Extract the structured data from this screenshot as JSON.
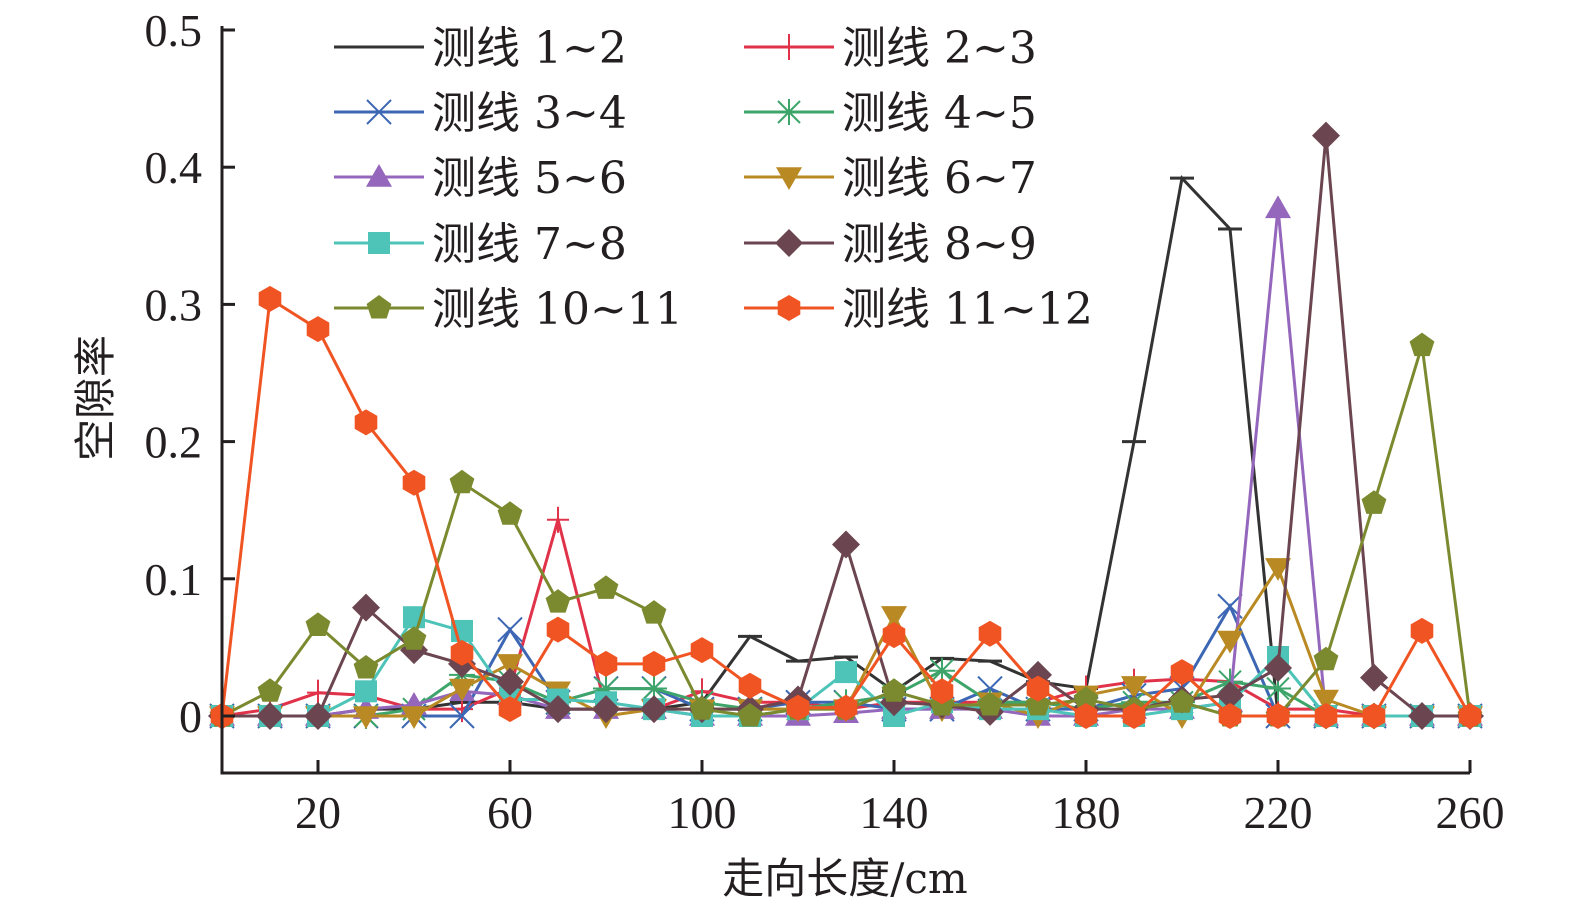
{
  "chart_data": {
    "type": "line",
    "title": "",
    "xlabel": "走向长度/cm",
    "ylabel": "空隙率",
    "xlim": [
      0,
      260
    ],
    "ylim": [
      -0.042,
      0.5
    ],
    "xticks": [
      20,
      60,
      100,
      140,
      180,
      220,
      260
    ],
    "xtick_labels": [
      "20",
      "60",
      "100",
      "140",
      "180",
      "220",
      "260"
    ],
    "yticks": [
      0,
      0.1,
      0.2,
      0.3,
      0.4,
      0.5
    ],
    "ytick_labels": [
      "0",
      "0.1",
      "0.2",
      "0.3",
      "0.4",
      "0.5"
    ],
    "grid": false,
    "legend_position": "top",
    "x": [
      0,
      10,
      20,
      30,
      40,
      50,
      60,
      70,
      80,
      90,
      100,
      110,
      120,
      130,
      140,
      150,
      160,
      170,
      180,
      190,
      200,
      210,
      220,
      230,
      240,
      250,
      260
    ],
    "series": [
      {
        "name": "测线 1~2",
        "color": "#333333",
        "marker": "hline",
        "values": [
          0,
          0,
          0,
          0.005,
          0.005,
          0.01,
          0.01,
          0.005,
          0.005,
          0.005,
          0.01,
          0.058,
          0.04,
          0.043,
          0.018,
          0.042,
          0.04,
          0.025,
          0.02,
          0.2,
          0.392,
          0.355,
          0,
          0,
          0,
          0,
          0
        ]
      },
      {
        "name": "测线 2~3",
        "color": "#e0334a",
        "marker": "plus",
        "values": [
          0,
          0.005,
          0.017,
          0.015,
          0.005,
          0.005,
          0.02,
          0.143,
          0.005,
          0.005,
          0.018,
          0.01,
          0.01,
          0.005,
          0.01,
          0.01,
          0.01,
          0.01,
          0.02,
          0.025,
          0.027,
          0.025,
          0.005,
          0.005,
          0,
          0,
          0
        ]
      },
      {
        "name": "测线 3~4",
        "color": "#3d67b4",
        "marker": "x",
        "values": [
          0,
          0,
          0,
          0,
          0,
          0,
          0.063,
          0.01,
          0.02,
          0.02,
          0.005,
          0.005,
          0.01,
          0.01,
          0.005,
          0.005,
          0.02,
          0.005,
          0.005,
          0.015,
          0.02,
          0.08,
          0,
          0,
          0,
          0,
          0
        ]
      },
      {
        "name": "测线 4~5",
        "color": "#3ea56a",
        "marker": "asterisk",
        "values": [
          0,
          0,
          0,
          0,
          0.005,
          0.03,
          0.025,
          0.01,
          0.02,
          0.02,
          0.01,
          0.005,
          0.005,
          0.01,
          0.015,
          0.033,
          0.01,
          0.01,
          0.005,
          0.01,
          0.01,
          0.025,
          0.02,
          0,
          0,
          0,
          0
        ]
      },
      {
        "name": "测线 5~6",
        "color": "#9467bd",
        "marker": "triangle-up",
        "values": [
          0,
          0,
          0,
          0.005,
          0.008,
          0.018,
          0.015,
          0.005,
          0.005,
          0.005,
          0,
          0,
          0,
          0.002,
          0.005,
          0.005,
          0.005,
          0,
          0,
          0.005,
          0.005,
          0.01,
          0.37,
          0,
          0,
          0,
          0
        ]
      },
      {
        "name": "测线 6~7",
        "color": "#b98a23",
        "marker": "triangle-down",
        "values": [
          0,
          0,
          0,
          0,
          0,
          0.02,
          0.038,
          0.018,
          0,
          0.005,
          0.005,
          0.005,
          0.005,
          0.005,
          0.073,
          0.005,
          0.01,
          0,
          0.015,
          0.022,
          0,
          0.055,
          0.108,
          0.012,
          0,
          0,
          0
        ]
      },
      {
        "name": "测线 7~8",
        "color": "#4ec4b8",
        "marker": "square",
        "values": [
          0,
          0,
          0,
          0.018,
          0.072,
          0.062,
          0.012,
          0.012,
          0.01,
          0.005,
          0,
          0,
          0.005,
          0.032,
          0,
          0.01,
          0.005,
          0.005,
          0,
          0,
          0.005,
          0.01,
          0.043,
          0,
          0,
          0,
          0
        ]
      },
      {
        "name": "测线 8~9",
        "color": "#6b4550",
        "marker": "diamond",
        "values": [
          0,
          0,
          0,
          0.079,
          0.048,
          0.038,
          0.025,
          0.005,
          0.005,
          0.005,
          0.005,
          0.005,
          0.012,
          0.125,
          0.01,
          0.008,
          0.003,
          0.03,
          0.005,
          0.005,
          0.012,
          0.015,
          0.035,
          0.423,
          0.028,
          0,
          0
        ]
      },
      {
        "name": "测线 10~11",
        "color": "#7b8a2f",
        "marker": "pentagon",
        "values": [
          0,
          0.018,
          0.066,
          0.035,
          0.056,
          0.17,
          0.147,
          0.083,
          0.093,
          0.075,
          0.005,
          0,
          0.005,
          0.005,
          0.018,
          0.008,
          0.008,
          0.008,
          0.012,
          0.005,
          0.01,
          0,
          0,
          0.041,
          0.155,
          0.27,
          0
        ]
      },
      {
        "name": "测线 11~12",
        "color": "#f05423",
        "marker": "hexagon",
        "values": [
          0,
          0.304,
          0.282,
          0.214,
          0.17,
          0.046,
          0.005,
          0.063,
          0.038,
          0.038,
          0.048,
          0.022,
          0.006,
          0.006,
          0.059,
          0.018,
          0.06,
          0.02,
          0,
          0,
          0.032,
          0,
          0,
          0,
          0,
          0.062,
          0
        ]
      }
    ]
  }
}
